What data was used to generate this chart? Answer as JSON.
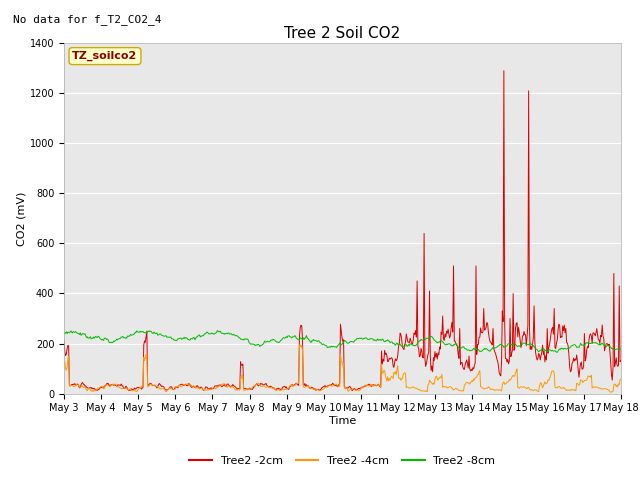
{
  "title": "Tree 2 Soil CO2",
  "subtitle": "No data for f_T2_CO2_4",
  "xlabel": "Time",
  "ylabel": "CO2 (mV)",
  "ylim": [
    0,
    1400
  ],
  "plot_bg_color": "#e8e8e8",
  "fig_bg_color": "#ffffff",
  "legend_label": "TZ_soilco2",
  "x_tick_labels": [
    "May 3",
    "May 4",
    "May 5",
    "May 6",
    "May 7",
    "May 8",
    "May 9",
    "May 10",
    "May 11",
    "May 12",
    "May 13",
    "May 14",
    "May 15",
    "May 16",
    "May 17",
    "May 18"
  ],
  "series_2cm_color": "#dd0000",
  "series_4cm_color": "#ff9900",
  "series_8cm_color": "#00bb00",
  "legend_entries": [
    "Tree2 -2cm",
    "Tree2 -4cm",
    "Tree2 -8cm"
  ],
  "title_fontsize": 11,
  "subtitle_fontsize": 8,
  "axis_label_fontsize": 8,
  "tick_fontsize": 7,
  "legend_fontsize": 8,
  "annotation_fontsize": 8
}
